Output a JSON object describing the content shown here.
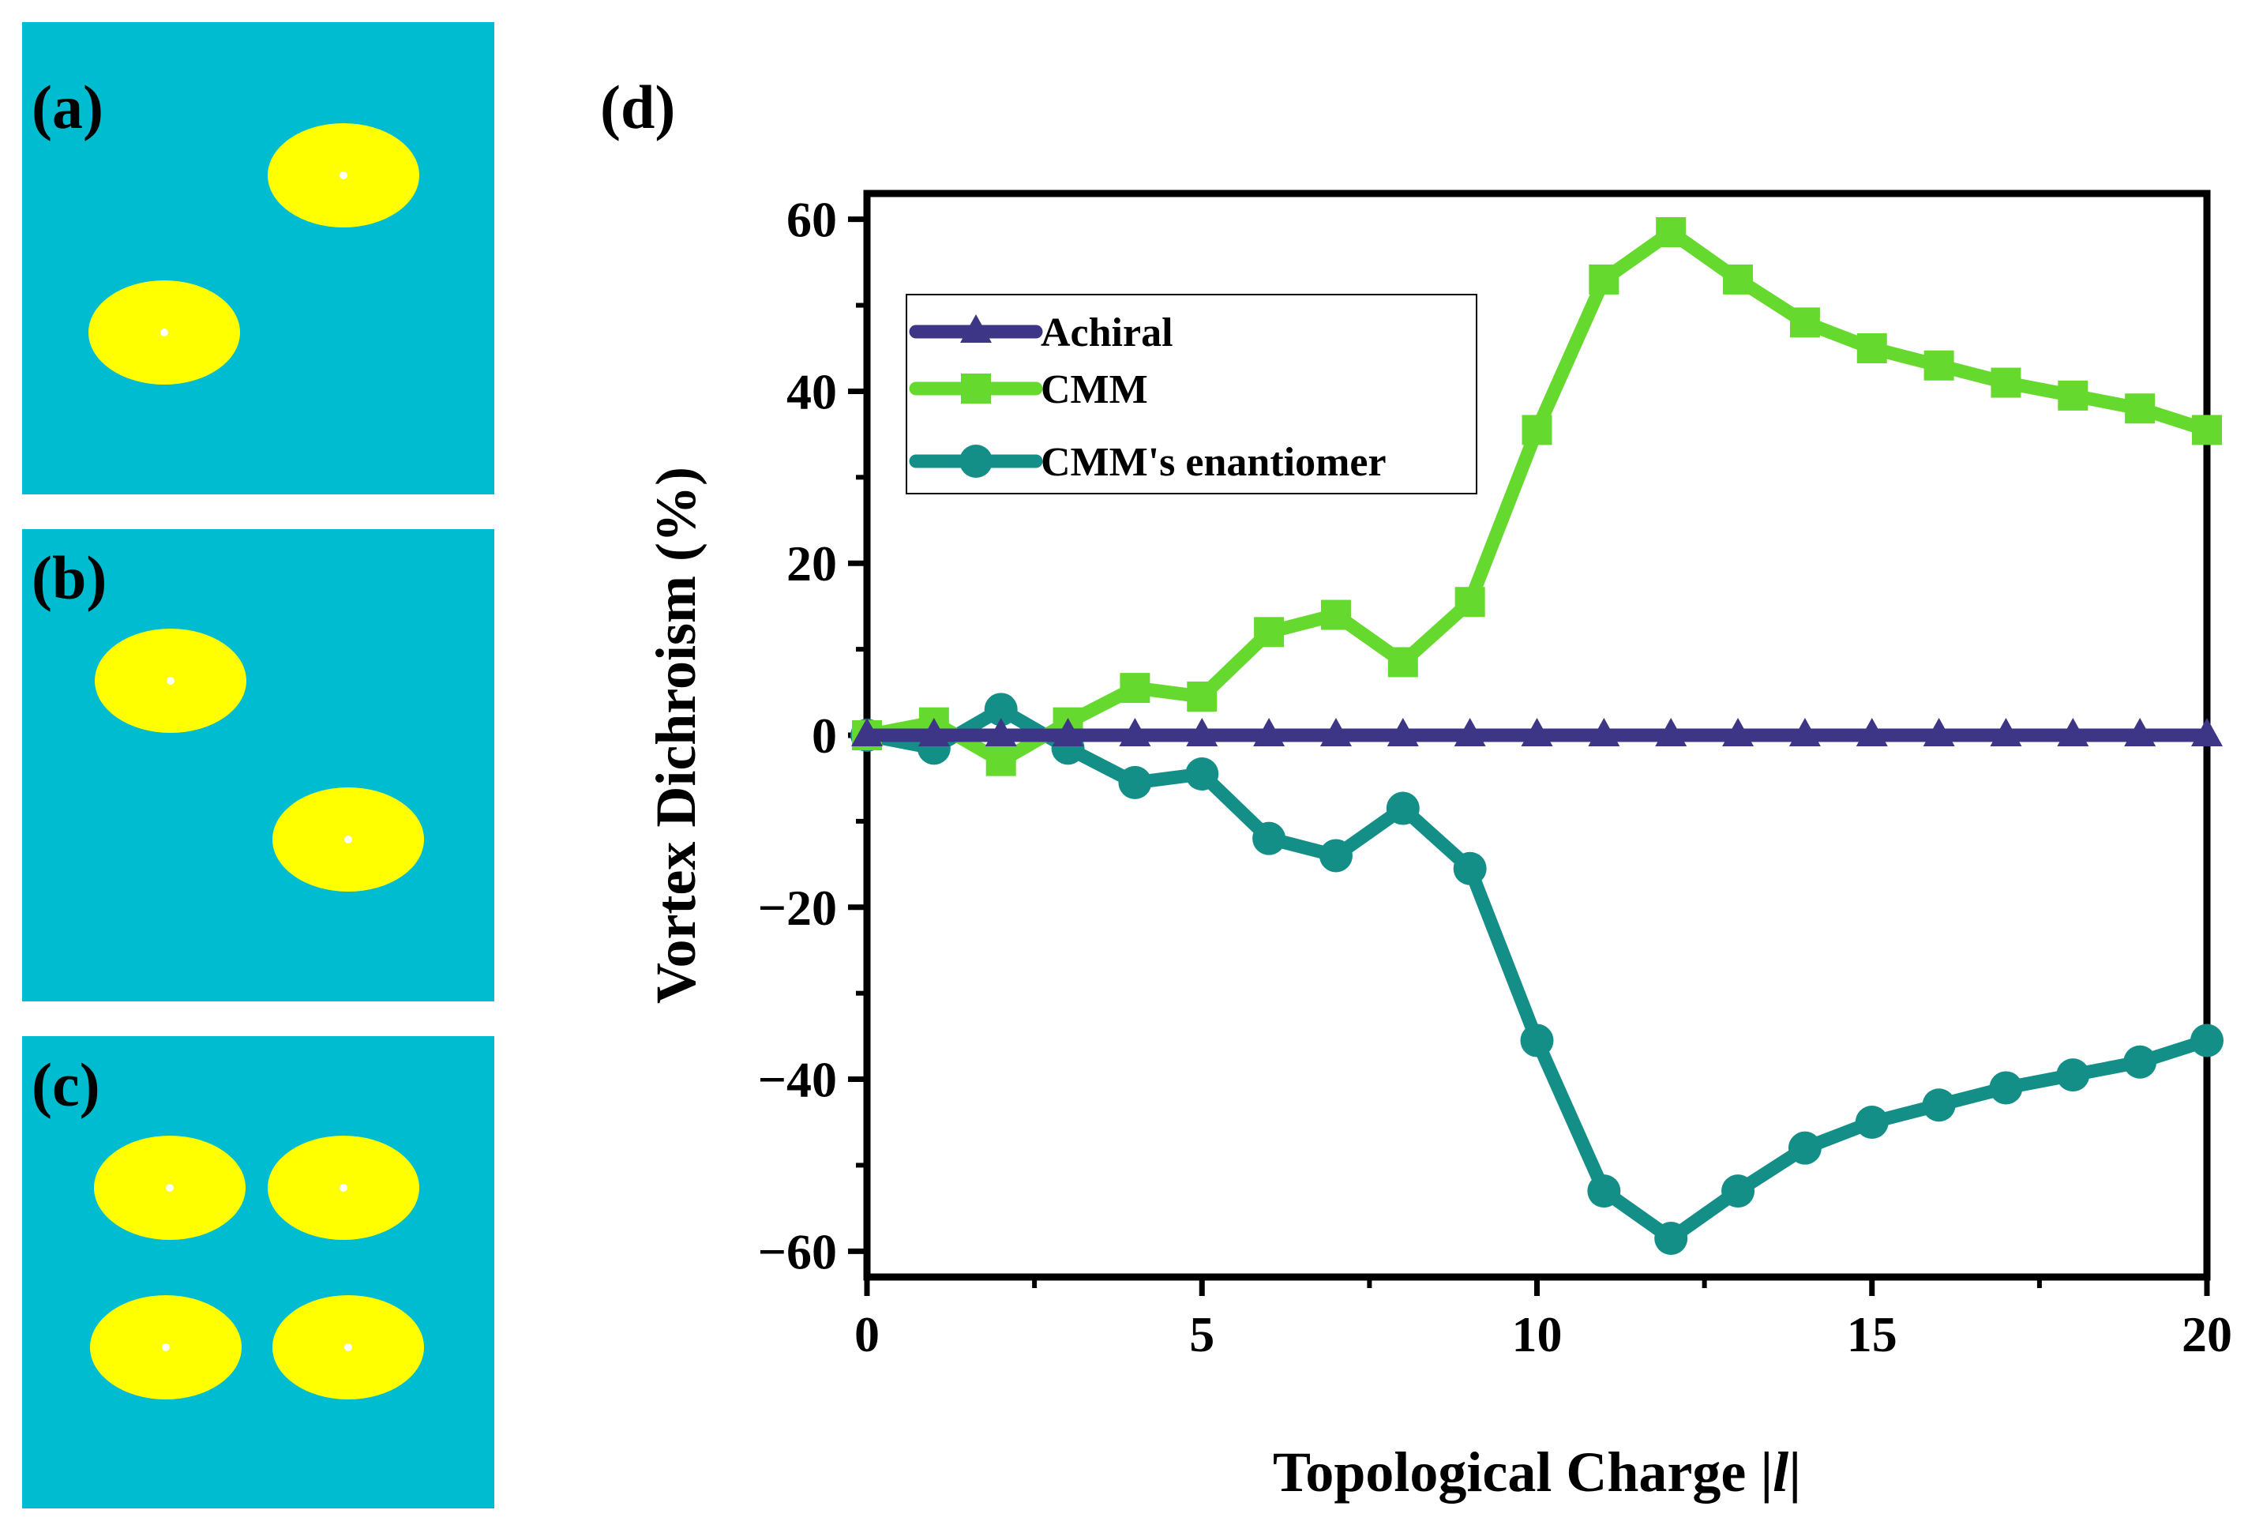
{
  "panels": {
    "a": {
      "label": "(a)"
    },
    "b": {
      "label": "(b)"
    },
    "c": {
      "label": "(c)"
    },
    "d": {
      "label": "(d)"
    }
  },
  "colors": {
    "panel_background": "#00BCD0",
    "ellipse_fill": "#FFFF00",
    "ellipse_dot": "#FFFFFF",
    "achiral": "#3D3585",
    "cmm": "#66D92E",
    "enantiomer": "#138F88",
    "axis": "#000000"
  },
  "chart_data": {
    "type": "line",
    "title": "",
    "xlabel": "Topological Charge |l|",
    "xlabel_parts": {
      "prefix": "Topological Charge |",
      "italic": "l",
      "suffix": "|"
    },
    "ylabel": "Vortex Dichroism (%)",
    "xlim": [
      0,
      20
    ],
    "ylim": [
      -63,
      63
    ],
    "xticks": [
      0,
      5,
      10,
      15,
      20
    ],
    "xtick_labels": [
      "0",
      "5",
      "10",
      "15",
      "20"
    ],
    "yticks": [
      60,
      40,
      20,
      0,
      -20,
      -40,
      -60
    ],
    "ytick_labels": [
      "60",
      "40",
      "20",
      "0",
      "−20",
      "−40",
      "−60"
    ],
    "legend_position": "upper-left",
    "x": [
      0,
      1,
      2,
      3,
      4,
      5,
      6,
      7,
      8,
      9,
      10,
      11,
      12,
      13,
      14,
      15,
      16,
      17,
      18,
      19,
      20
    ],
    "series": [
      {
        "name": "Achiral",
        "marker": "triangle",
        "color": "#3D3585",
        "values": [
          0,
          0,
          0,
          0,
          0,
          0,
          0,
          0,
          0,
          0,
          0,
          0,
          0,
          0,
          0,
          0,
          0,
          0,
          0,
          0,
          0
        ]
      },
      {
        "name": "CMM",
        "marker": "square",
        "color": "#66D92E",
        "values": [
          0,
          1.5,
          -3,
          1.5,
          5.5,
          4.5,
          12,
          14,
          8.5,
          15.5,
          35.5,
          53,
          58.5,
          53,
          48,
          45,
          43,
          41,
          39.5,
          38,
          35.5
        ]
      },
      {
        "name": "CMM's enantiomer",
        "marker": "circle",
        "color": "#138F88",
        "values": [
          0,
          -1.5,
          3,
          -1.5,
          -5.5,
          -4.5,
          -12,
          -14,
          -8.5,
          -15.5,
          -35.5,
          -53,
          -58.5,
          -53,
          -48,
          -45,
          -43,
          -41,
          -39.5,
          -38,
          -35.5
        ]
      }
    ]
  }
}
